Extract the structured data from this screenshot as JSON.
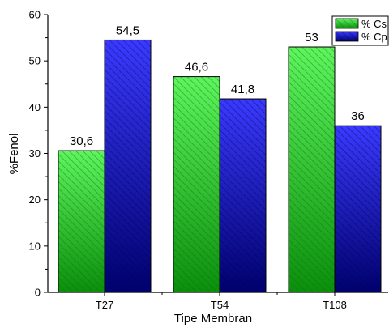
{
  "chart_data": {
    "type": "bar",
    "xlabel": "Tipe Membran",
    "ylabel": "%Fenol",
    "categories": [
      "T27",
      "T54",
      "T108"
    ],
    "ylim": [
      0,
      60
    ],
    "yticks": [
      "0",
      "10",
      "20",
      "30",
      "40",
      "50",
      "60"
    ],
    "series": [
      {
        "name": "% Cs",
        "values": [
          30.6,
          46.6,
          53
        ],
        "value_labels": [
          "30,6",
          "46,6",
          "53"
        ],
        "color_light": "#5ef55e",
        "color_dark": "#0b8f0b",
        "hatch": "#0a6a0a"
      },
      {
        "name": "% Cp",
        "values": [
          54.5,
          41.8,
          36
        ],
        "value_labels": [
          "54,5",
          "41,8",
          "36"
        ],
        "color_light": "#3a3aff",
        "color_dark": "#00006e",
        "hatch": "#000050"
      }
    ],
    "legend_position": "top-right",
    "grid": false
  }
}
